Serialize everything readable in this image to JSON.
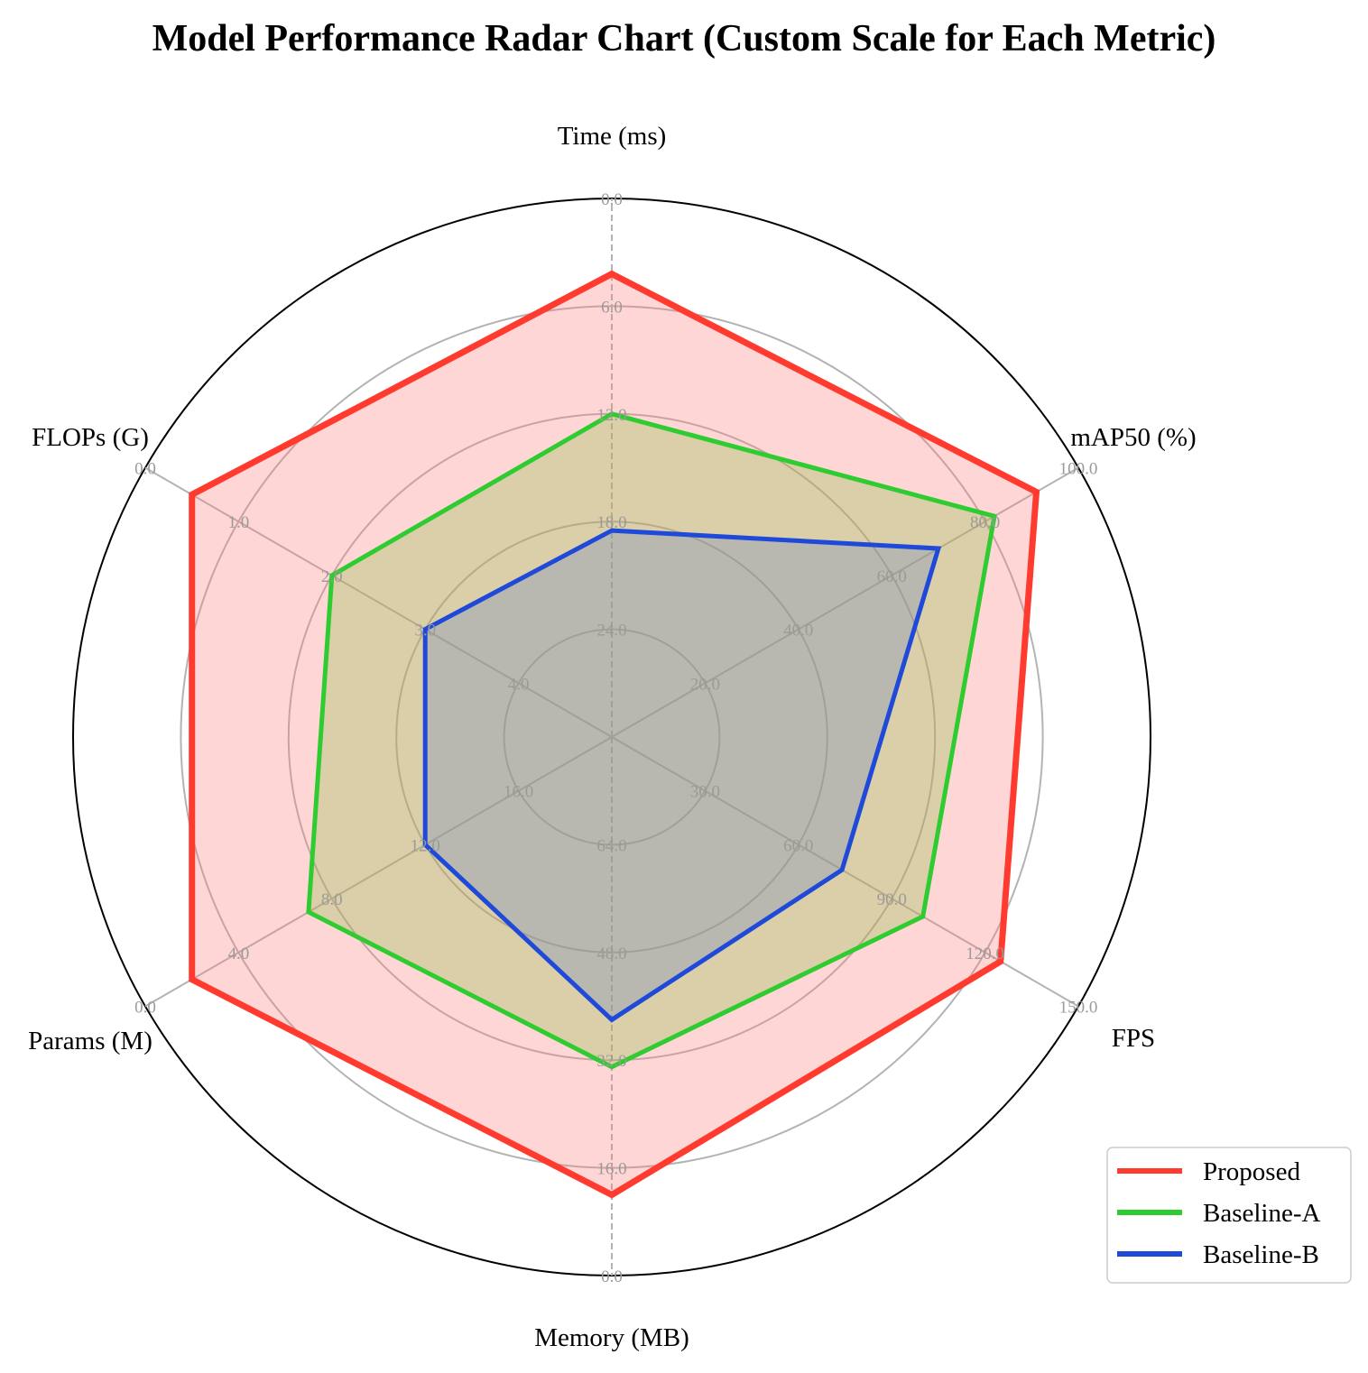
{
  "chart_data": {
    "type": "radar",
    "title": "Model Performance Radar Chart (Custom Scale for Each Metric)",
    "axes": [
      {
        "name": "Time (ms)",
        "ticks": [
          "0.0",
          "6.0",
          "12.0",
          "18.0",
          "24.0"
        ],
        "min": 30,
        "max": 0
      },
      {
        "name": "mAP50 (%)",
        "ticks": [
          "100.0",
          "80.0",
          "60.0",
          "40.0",
          "20.0"
        ],
        "min": 0,
        "max": 100
      },
      {
        "name": "FPS",
        "ticks": [
          "150.0",
          "120.0",
          "90.0",
          "60.0",
          "30.0"
        ],
        "min": 0,
        "max": 150
      },
      {
        "name": "Memory (MB)",
        "ticks": [
          "0.0",
          "16.0",
          "32.0",
          "48.0",
          "64.0"
        ],
        "min": 80,
        "max": 0
      },
      {
        "name": "Params (M)",
        "ticks": [
          "0.0",
          "4.0",
          "8.0",
          "12.0",
          "16.0"
        ],
        "min": 20,
        "max": 0
      },
      {
        "name": "FLOPs (G)",
        "ticks": [
          "0.0",
          "1.0",
          "2.0",
          "3.0",
          "4.0"
        ],
        "min": 5,
        "max": 0
      }
    ],
    "series": [
      {
        "name": "Proposed",
        "color": "#ff3b30",
        "fill": "#ff8080",
        "values": [
          4.2,
          91,
          125,
          12,
          2,
          0.5
        ]
      },
      {
        "name": "Baseline-A",
        "color": "#2ecc30",
        "fill": "#8fc24a",
        "values": [
          12,
          82,
          100,
          31,
          7,
          2
        ]
      },
      {
        "name": "Baseline-B",
        "color": "#1f49d8",
        "fill": "#6f88c0",
        "values": [
          18.5,
          70,
          74,
          38,
          12,
          3
        ]
      }
    ],
    "legend_position": "bottom-right",
    "grid": true
  }
}
